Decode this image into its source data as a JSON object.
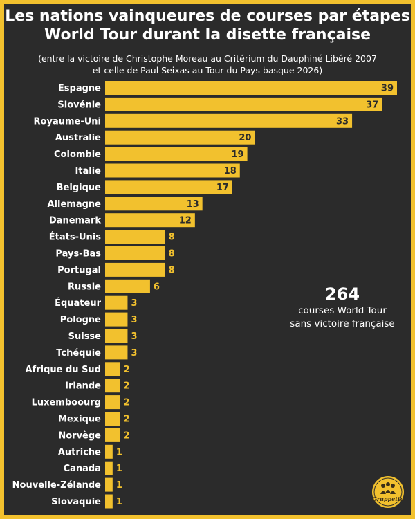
{
  "title_lines": [
    "Les nations vainqueures de courses par étapes",
    "World Tour durant la disette française"
  ],
  "subtitle_lines": [
    "(entre la victoire de Christophe Moreau au Critérium du Dauphiné Libéré 2007",
    "et celle de Paul Seixas au Tour du Pays basque 2026)"
  ],
  "callout": {
    "number": "264",
    "line1": "courses World Tour",
    "line2": "sans victoire française"
  },
  "logo_text": "Gruppetto",
  "colors": {
    "background": "#2b2b2b",
    "border": "#f2c12e",
    "bar": "#f2c12e",
    "text": "#ffffff",
    "value_inside": "#2b2b2b",
    "value_outside": "#f2c12e"
  },
  "chart_data": {
    "type": "bar",
    "orientation": "horizontal",
    "title": "Les nations vainqueures de courses par étapes World Tour durant la disette française",
    "categories": [
      "Espagne",
      "Slovénie",
      "Royaume-Uni",
      "Australie",
      "Colombie",
      "Italie",
      "Belgique",
      "Allemagne",
      "Danemark",
      "États-Unis",
      "Pays-Bas",
      "Portugal",
      "Russie",
      "Équateur",
      "Pologne",
      "Suisse",
      "Tchéquie",
      "Afrique du Sud",
      "Irlande",
      "Luxemboourg",
      "Mexique",
      "Norvège",
      "Autriche",
      "Canada",
      "Nouvelle-Zélande",
      "Slovaquie"
    ],
    "values": [
      39,
      37,
      33,
      20,
      19,
      18,
      17,
      13,
      12,
      8,
      8,
      8,
      6,
      3,
      3,
      3,
      3,
      2,
      2,
      2,
      2,
      2,
      1,
      1,
      1,
      1
    ],
    "xlabel": "",
    "ylabel": "",
    "xlim": [
      0,
      39
    ],
    "grid": false
  }
}
